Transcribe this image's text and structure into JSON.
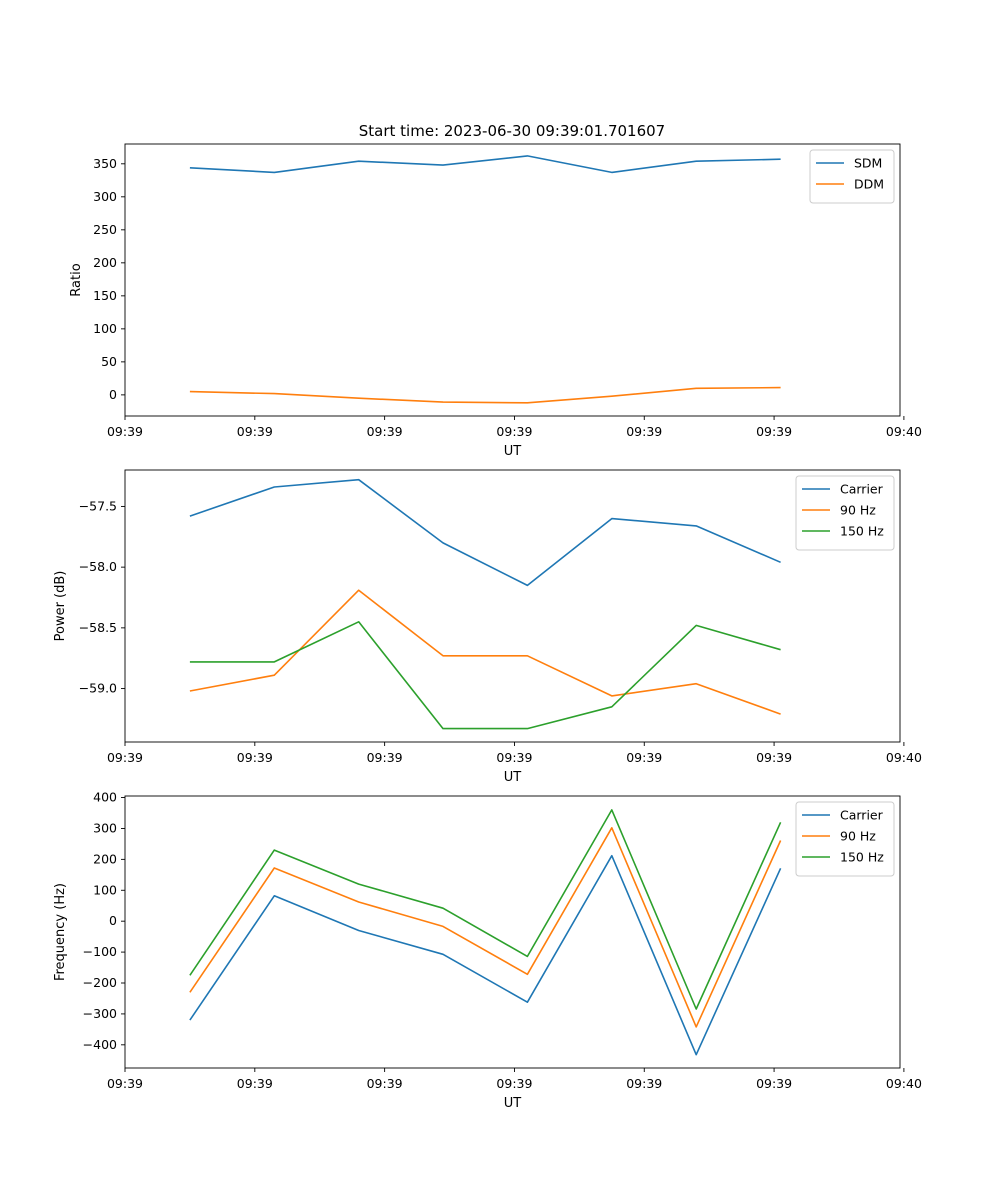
{
  "title": "Start time: 2023-06-30 09:39:01.701607",
  "chart_data": [
    {
      "type": "line",
      "ylabel": "Ratio",
      "xlabel": "UT",
      "xticks": [
        "09:39",
        "09:39",
        "09:39",
        "09:39",
        "09:39",
        "09:39",
        "09:40"
      ],
      "yticks": [
        0,
        50,
        100,
        150,
        200,
        250,
        300,
        350
      ],
      "ylim": [
        -32,
        380
      ],
      "legend_position": "upper right",
      "x": [
        0.5,
        1.15,
        1.8,
        2.45,
        3.1,
        3.75,
        4.4,
        5.05
      ],
      "series": [
        {
          "name": "SDM",
          "color": "#1f77b4",
          "values": [
            344,
            337,
            354,
            348,
            362,
            337,
            354,
            357
          ]
        },
        {
          "name": "DDM",
          "color": "#ff7f0e",
          "values": [
            5,
            2,
            -5,
            -11,
            -12,
            -2,
            10,
            11
          ]
        }
      ]
    },
    {
      "type": "line",
      "ylabel": "Power (dB)",
      "xlabel": "UT",
      "xticks": [
        "09:39",
        "09:39",
        "09:39",
        "09:39",
        "09:39",
        "09:39",
        "09:40"
      ],
      "yticks": [
        "−57.5",
        "−58.0",
        "−58.5",
        "−59.0"
      ],
      "ytick_values": [
        -57.5,
        -58.0,
        -58.5,
        -59.0
      ],
      "ylim": [
        -59.44,
        -57.2
      ],
      "legend_position": "upper right",
      "x": [
        0.5,
        1.15,
        1.8,
        2.45,
        3.1,
        3.75,
        4.4,
        5.05
      ],
      "series": [
        {
          "name": "Carrier",
          "color": "#1f77b4",
          "values": [
            -57.58,
            -57.34,
            -57.28,
            -57.8,
            -58.15,
            -57.6,
            -57.66,
            -57.96
          ]
        },
        {
          "name": "90 Hz",
          "color": "#ff7f0e",
          "values": [
            -59.02,
            -58.89,
            -58.19,
            -58.73,
            -58.73,
            -59.06,
            -58.96,
            -59.21
          ]
        },
        {
          "name": "150 Hz",
          "color": "#2ca02c",
          "values": [
            -58.78,
            -58.78,
            -58.45,
            -59.33,
            -59.33,
            -59.15,
            -58.48,
            -58.68
          ]
        }
      ]
    },
    {
      "type": "line",
      "ylabel": "Frequency (Hz)",
      "xlabel": "UT",
      "xticks": [
        "09:39",
        "09:39",
        "09:39",
        "09:39",
        "09:39",
        "09:39",
        "09:40"
      ],
      "yticks": [
        "−400",
        "−300",
        "−200",
        "−100",
        "0",
        "100",
        "200",
        "300",
        "400"
      ],
      "ytick_values": [
        -400,
        -300,
        -200,
        -100,
        0,
        100,
        200,
        300,
        400
      ],
      "ylim": [
        -475,
        405
      ],
      "legend_position": "upper right",
      "x": [
        0.5,
        1.15,
        1.8,
        2.45,
        3.1,
        3.75,
        4.4,
        5.05
      ],
      "series": [
        {
          "name": "Carrier",
          "color": "#1f77b4",
          "values": [
            -320,
            82,
            -30,
            -107,
            -262,
            212,
            -432,
            171
          ]
        },
        {
          "name": "90 Hz",
          "color": "#ff7f0e",
          "values": [
            -230,
            172,
            62,
            -17,
            -172,
            302,
            -342,
            261
          ]
        },
        {
          "name": "150 Hz",
          "color": "#2ca02c",
          "values": [
            -175,
            230,
            120,
            42,
            -114,
            360,
            -284,
            320
          ]
        }
      ]
    }
  ]
}
